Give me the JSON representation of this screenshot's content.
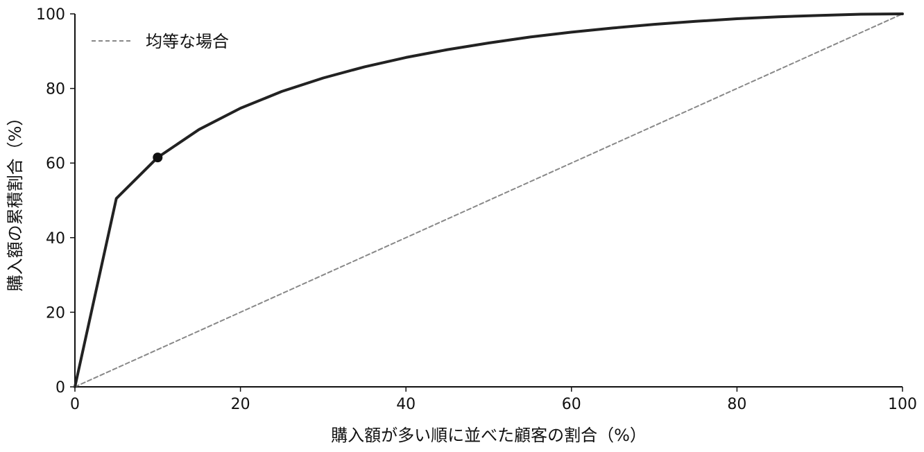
{
  "chart_data": {
    "type": "line",
    "title": "",
    "xlabel": "購入額が多い順に並べた顧客の割合（%）",
    "ylabel": "購入額の累積割合（%）",
    "xlim": [
      0,
      100
    ],
    "ylim": [
      0,
      100
    ],
    "xticks": [
      0,
      20,
      40,
      60,
      80,
      100
    ],
    "yticks": [
      0,
      20,
      40,
      60,
      80,
      100
    ],
    "grid": false,
    "legend_position": "top-left",
    "series": [
      {
        "name": "",
        "color": "#222222",
        "style": "solid",
        "x": [
          0,
          5,
          10,
          15,
          20,
          25,
          30,
          35,
          40,
          45,
          50,
          55,
          60,
          65,
          70,
          75,
          80,
          85,
          90,
          95,
          100
        ],
        "y": [
          0,
          50.5,
          61.5,
          69.0,
          74.7,
          79.2,
          82.8,
          85.8,
          88.3,
          90.4,
          92.2,
          93.8,
          95.1,
          96.2,
          97.2,
          98.0,
          98.7,
          99.2,
          99.6,
          99.9,
          100
        ]
      },
      {
        "name": "均等な場合",
        "color": "#888888",
        "style": "dashed",
        "x": [
          0,
          100
        ],
        "y": [
          0,
          100
        ]
      }
    ],
    "highlight_points": [
      {
        "x": 10,
        "y": 61.5,
        "color": "#111111"
      }
    ]
  }
}
